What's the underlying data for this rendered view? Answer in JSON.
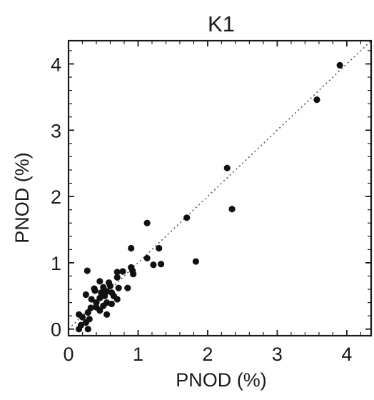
{
  "chart_data": {
    "type": "scatter",
    "title": "K1",
    "xlabel": "PNOD (%)",
    "ylabel": "PNOD (%)",
    "xlim": [
      0,
      4.35
    ],
    "ylim": [
      -0.1,
      4.35
    ],
    "xticks": [
      "0",
      "1",
      "2",
      "3",
      "4"
    ],
    "yticks": [
      "0",
      "1",
      "2",
      "3",
      "4"
    ],
    "grid": false,
    "reference_line": "y = x (dotted)",
    "colors": {
      "points": "#111111",
      "axes": "#1a1a1a",
      "reference_line": "#555555"
    },
    "series": [
      {
        "points": [
          [
            3.9,
            3.98
          ],
          [
            3.57,
            3.46
          ],
          [
            2.28,
            2.43
          ],
          [
            2.35,
            1.81
          ],
          [
            1.7,
            1.68
          ],
          [
            1.13,
            1.6
          ],
          [
            0.9,
            1.22
          ],
          [
            1.3,
            1.22
          ],
          [
            1.83,
            1.02
          ],
          [
            1.33,
            0.98
          ],
          [
            1.13,
            1.07
          ],
          [
            1.22,
            0.97
          ],
          [
            0.9,
            0.93
          ],
          [
            0.92,
            0.88
          ],
          [
            0.78,
            0.87
          ],
          [
            0.93,
            0.83
          ],
          [
            0.7,
            0.86
          ],
          [
            0.27,
            0.88
          ],
          [
            0.85,
            0.62
          ],
          [
            0.7,
            0.78
          ],
          [
            0.58,
            0.7
          ],
          [
            0.45,
            0.72
          ],
          [
            0.37,
            0.61
          ],
          [
            0.5,
            0.63
          ],
          [
            0.25,
            0.52
          ],
          [
            0.55,
            0.57
          ],
          [
            0.62,
            0.55
          ],
          [
            0.52,
            0.5
          ],
          [
            0.65,
            0.5
          ],
          [
            0.45,
            0.47
          ],
          [
            0.7,
            0.45
          ],
          [
            0.4,
            0.4
          ],
          [
            0.55,
            0.4
          ],
          [
            0.62,
            0.38
          ],
          [
            0.5,
            0.35
          ],
          [
            0.32,
            0.32
          ],
          [
            0.45,
            0.28
          ],
          [
            0.28,
            0.25
          ],
          [
            0.55,
            0.22
          ],
          [
            0.2,
            0.18
          ],
          [
            0.15,
            0.22
          ],
          [
            0.3,
            0.15
          ],
          [
            0.25,
            0.1
          ],
          [
            0.18,
            0.06
          ],
          [
            0.28,
            0.0
          ],
          [
            0.15,
            0.0
          ],
          [
            0.38,
            0.58
          ],
          [
            0.33,
            0.45
          ],
          [
            0.6,
            0.65
          ],
          [
            0.47,
            0.55
          ],
          [
            0.72,
            0.62
          ],
          [
            0.4,
            0.33
          ]
        ]
      }
    ]
  }
}
